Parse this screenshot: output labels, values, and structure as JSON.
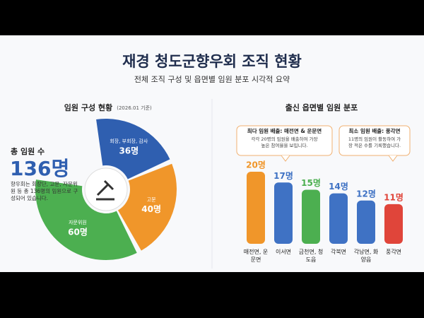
{
  "header": {
    "title": "재경 청도군향우회 조직 현황",
    "subtitle": "전체 조직 구성 및 읍면별 임원 분포 시각적 요약"
  },
  "chart_data": [
    {
      "type": "pie",
      "title": "임원 구성 현황",
      "subtitle": "(2026.01 기준)",
      "categories": [
        "회장, 부회장, 감사",
        "고문",
        "자문위원"
      ],
      "values": [
        36,
        40,
        60
      ],
      "value_labels": [
        "36명",
        "40명",
        "60명"
      ],
      "colors": [
        "#2f5fb0",
        "#f0962a",
        "#4caf50"
      ],
      "total_title": "총 임원 수",
      "total": 136,
      "total_label": "136명",
      "description": "향우회는 회장단, 고문, 자문위원 등 총 136명의 임원으로 구성되어 있습니다."
    },
    {
      "type": "bar",
      "title": "출신 읍면별 임원 분포",
      "categories": [
        "매전면, 운문면",
        "이서면",
        "금천면, 청도읍",
        "각북면",
        "각남면, 화양읍",
        "풍각면"
      ],
      "values": [
        20,
        17,
        15,
        14,
        12,
        11
      ],
      "value_labels": [
        "20명",
        "17명",
        "15명",
        "14명",
        "12명",
        "11명"
      ],
      "colors": [
        "#f0962a",
        "#3f72c4",
        "#4caf50",
        "#3f72c4",
        "#3f72c4",
        "#e0453a"
      ],
      "annotations": [
        {
          "title": "최다 임원 배출: 매전면 & 운문면",
          "text": "각각 20명의 임원을 배출하여 가장 높은 참여율을 보입니다."
        },
        {
          "title": "최소 임원 배출: 풍각면",
          "text": "11명의 임원이 활동하여 가장 적은 수를 기록했습니다."
        }
      ]
    }
  ]
}
